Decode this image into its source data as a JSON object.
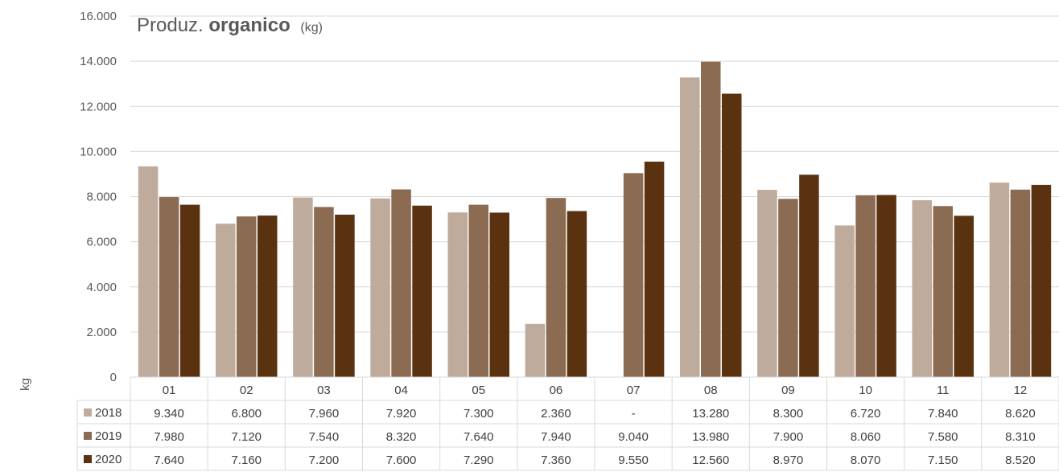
{
  "chart_data": {
    "type": "bar",
    "title_prefix": "Produz. ",
    "title_bold": "organico",
    "title_unit": "(kg)",
    "ylabel": "kg",
    "ylim": [
      0,
      16000
    ],
    "yticks": [
      "0",
      "2.000",
      "4.000",
      "6.000",
      "8.000",
      "10.000",
      "12.000",
      "14.000",
      "16.000"
    ],
    "grid": true,
    "legend": "table",
    "categories": [
      "01",
      "02",
      "03",
      "04",
      "05",
      "06",
      "07",
      "08",
      "09",
      "10",
      "11",
      "12"
    ],
    "series": [
      {
        "name": "2018",
        "color": "#bfab9c",
        "values": [
          9340,
          6800,
          7960,
          7920,
          7300,
          2360,
          null,
          13280,
          8300,
          6720,
          7840,
          8620
        ],
        "labels": [
          "9.340",
          "6.800",
          "7.960",
          "7.920",
          "7.300",
          "2.360",
          "-",
          "13.280",
          "8.300",
          "6.720",
          "7.840",
          "8.620"
        ]
      },
      {
        "name": "2019",
        "color": "#8b6b51",
        "values": [
          7980,
          7120,
          7540,
          8320,
          7640,
          7940,
          9040,
          13980,
          7900,
          8060,
          7580,
          8310
        ],
        "labels": [
          "7.980",
          "7.120",
          "7.540",
          "8.320",
          "7.640",
          "7.940",
          "9.040",
          "13.980",
          "7.900",
          "8.060",
          "7.580",
          "8.310"
        ]
      },
      {
        "name": "2020",
        "color": "#5a3210",
        "values": [
          7640,
          7160,
          7200,
          7600,
          7290,
          7360,
          9550,
          12560,
          8970,
          8070,
          7150,
          8520
        ],
        "labels": [
          "7.640",
          "7.160",
          "7.200",
          "7.600",
          "7.290",
          "7.360",
          "9.550",
          "12.560",
          "8.970",
          "8.070",
          "7.150",
          "8.520"
        ]
      }
    ]
  }
}
